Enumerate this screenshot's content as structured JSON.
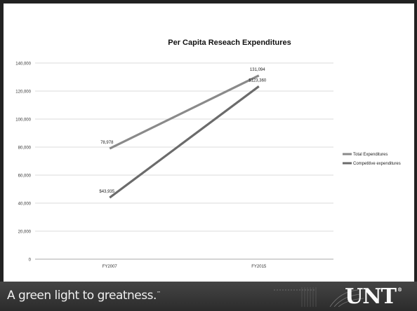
{
  "chart_data": {
    "type": "line",
    "title": "Per Capita Reseach Expenditures",
    "categories": [
      "FY2007",
      "FY2015"
    ],
    "ylim": [
      0,
      140000
    ],
    "yticks": [
      "0",
      "20,000",
      "40,000",
      "60,000",
      "80,000",
      "100,000",
      "120,000",
      "140,000"
    ],
    "ytick_values": [
      0,
      20000,
      40000,
      60000,
      80000,
      100000,
      120000,
      140000
    ],
    "grid": true,
    "legend_position": "right",
    "series": [
      {
        "name": "Total Expenditures",
        "values": [
          78978,
          131094
        ],
        "labels": [
          "78,978",
          "131,094"
        ],
        "color": "#8a8a8a"
      },
      {
        "name": "Competitive expenditures",
        "values": [
          43935,
          123360
        ],
        "labels": [
          "$43,935",
          "$123,360"
        ],
        "color": "#6b6b6b"
      }
    ]
  },
  "footer": {
    "tagline": "A green light to greatness.",
    "tagline_mark": "™",
    "logo": "UNT",
    "logo_mark": "®"
  }
}
